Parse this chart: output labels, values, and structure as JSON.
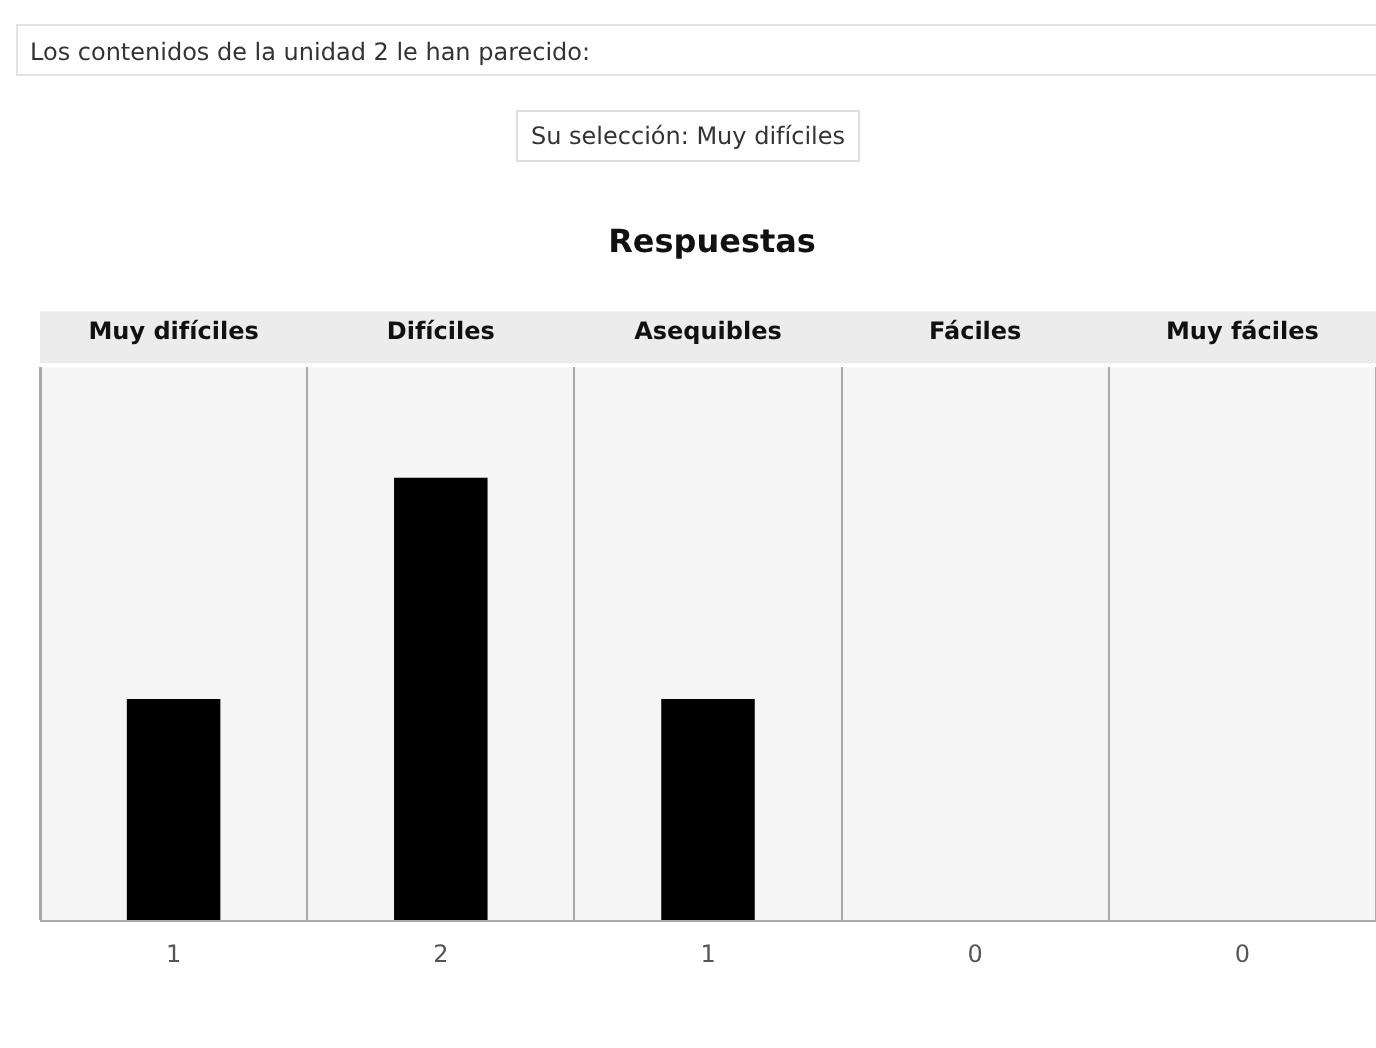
{
  "chart_data": {
    "type": "bar",
    "title": "Respuestas",
    "annotations": [
      "Los contenidos de la unidad 2 le han parecido:",
      "Su selección: Muy difíciles"
    ],
    "categories": [
      "Muy difíciles",
      "Difíciles",
      "Asequibles",
      "Fáciles",
      "Muy fáciles"
    ],
    "values": [
      1,
      2,
      1,
      0,
      0
    ],
    "color": "#000000",
    "data_labels": true,
    "grid": "x",
    "legend": false
  }
}
